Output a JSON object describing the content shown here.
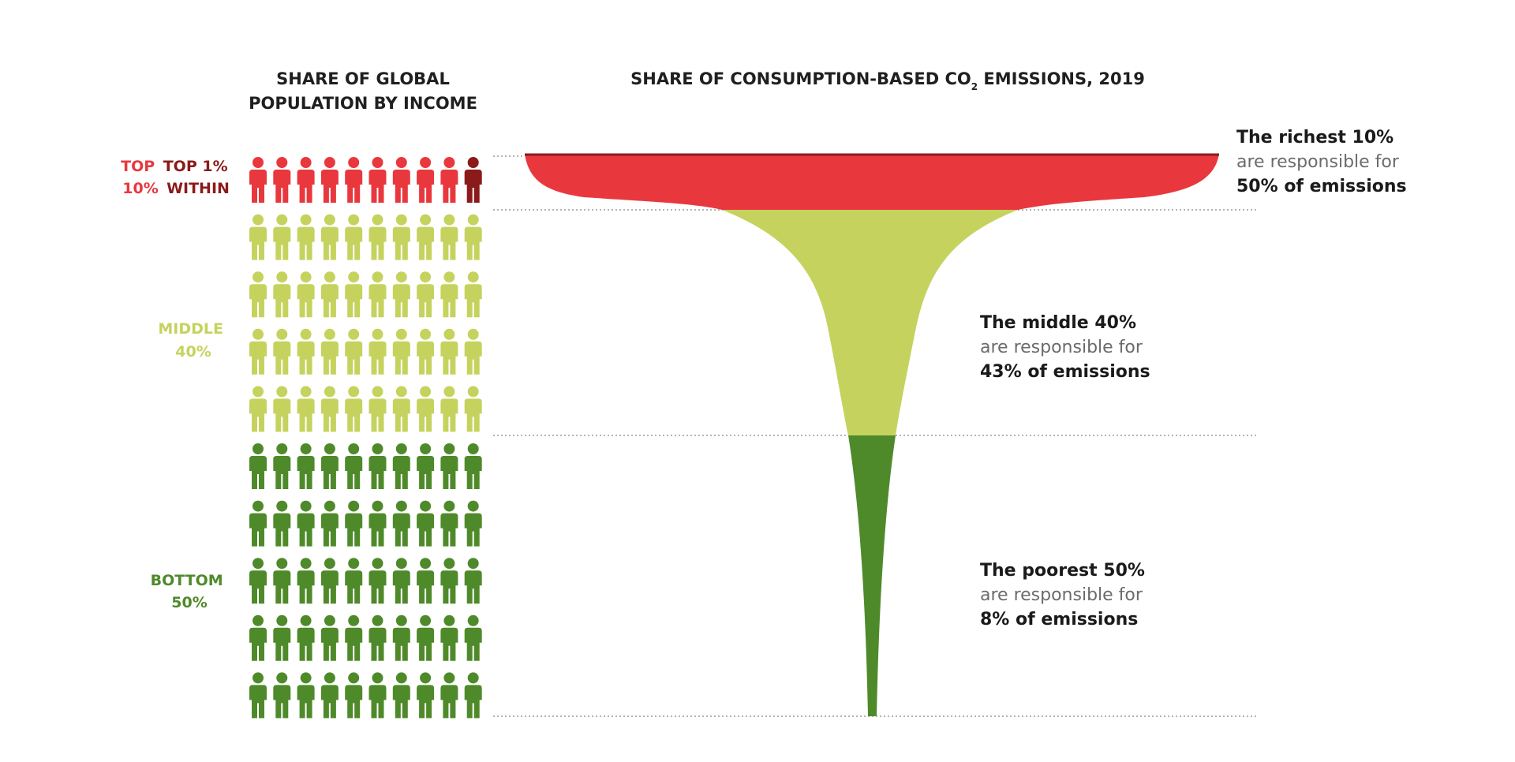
{
  "chart_data": {
    "type": "funnel-pictogram",
    "left_title": [
      "SHARE OF GLOBAL",
      "POPULATION BY INCOME"
    ],
    "right_title": {
      "before_sub": "SHARE OF CONSUMPTION-BASED CO",
      "sub": "2",
      "after_sub": " EMISSIONS, 2019"
    },
    "icon_grid": {
      "columns": 10,
      "rows": 10
    },
    "groups": [
      {
        "key": "top",
        "labels": [
          [
            "TOP",
            "10%"
          ],
          [
            "TOP 1%",
            "WITHIN"
          ]
        ],
        "population_share": 10,
        "emissions_share": 50,
        "color": "#e8383e",
        "highlight_color": "#8b1a1a",
        "annotation": [
          "The richest 10%",
          "are responsible for",
          "50% of emissions"
        ]
      },
      {
        "key": "middle",
        "labels": [
          [
            "MIDDLE",
            "40%"
          ]
        ],
        "population_share": 40,
        "emissions_share": 43,
        "color": "#c5d35e",
        "annotation": [
          "The middle 40%",
          "are responsible for",
          "43% of emissions"
        ]
      },
      {
        "key": "bottom",
        "labels": [
          [
            "BOTTOM",
            "50%"
          ]
        ],
        "population_share": 50,
        "emissions_share": 8,
        "color": "#4f8a2a",
        "annotation": [
          "The poorest 50%",
          "are responsible for",
          "8% of emissions"
        ]
      }
    ]
  }
}
